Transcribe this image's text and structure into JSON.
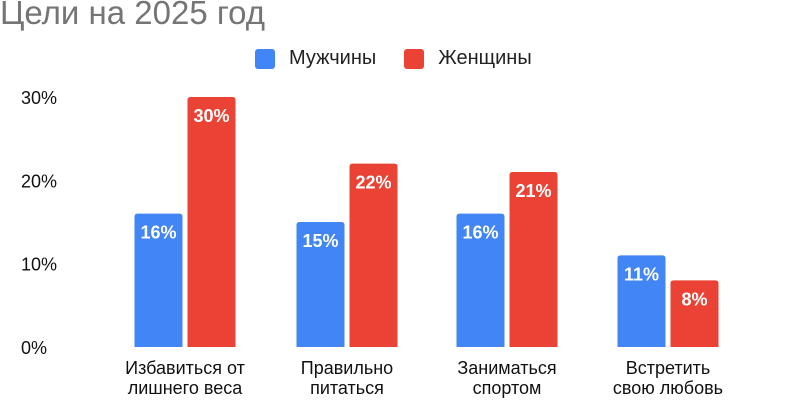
{
  "colors": {
    "men": "#4285f4",
    "women": "#ea4335",
    "axis_text": "#111111",
    "title": "#757575"
  },
  "chart_data": {
    "type": "bar",
    "title": "Цели на 2025 год",
    "categories": [
      [
        "Избавиться от",
        "лишнего веса"
      ],
      [
        "Правильно",
        "питаться"
      ],
      [
        "Заниматься",
        "спортом"
      ],
      [
        "Встретить",
        "свою любовь"
      ]
    ],
    "series": [
      {
        "name": "Мужчины",
        "values": [
          16,
          15,
          16,
          11
        ],
        "labels": [
          "16%",
          "15%",
          "16%",
          "11%"
        ]
      },
      {
        "name": "Женщины",
        "values": [
          30,
          22,
          21,
          8
        ],
        "labels": [
          "30%",
          "22%",
          "21%",
          "8%"
        ]
      }
    ],
    "yticks": [
      {
        "value": 0,
        "label": "0%"
      },
      {
        "value": 10,
        "label": "10%"
      },
      {
        "value": 20,
        "label": "20%"
      },
      {
        "value": 30,
        "label": "30%"
      }
    ],
    "ylim": [
      0,
      30
    ],
    "grid": false,
    "legend_position": "top"
  }
}
